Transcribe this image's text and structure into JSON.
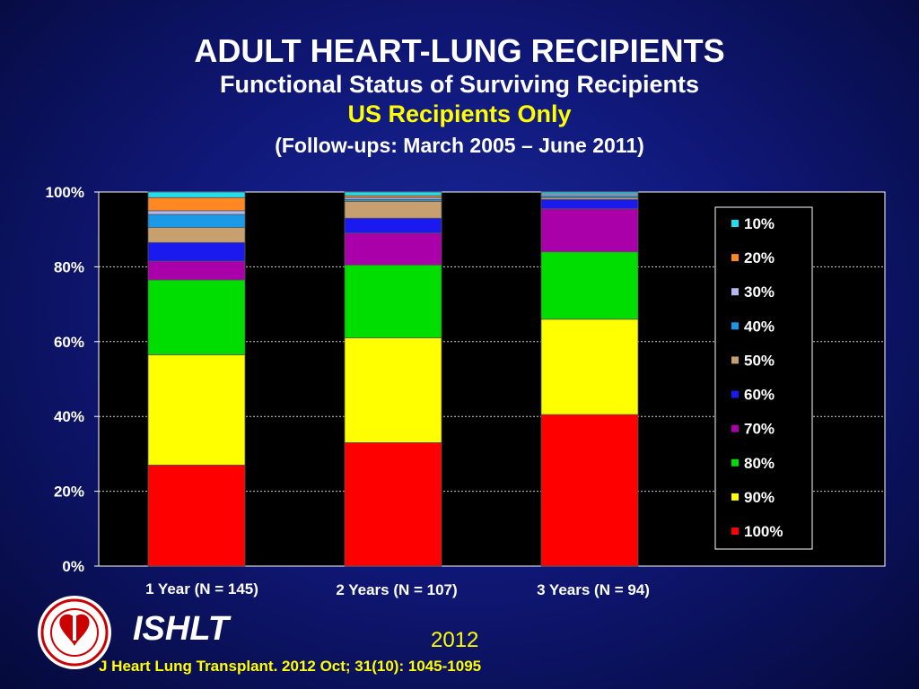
{
  "titles": {
    "main": "ADULT HEART-LUNG RECIPIENTS",
    "subtitle": "Functional Status of Surviving Recipients",
    "highlight": "US Recipients Only",
    "followups": "(Follow-ups: March 2005 – June 2011)"
  },
  "chart_data": {
    "type": "bar",
    "stacked": true,
    "categories": [
      "1 Year  (N = 145)",
      "2 Years  (N = 107)",
      "3 Years  (N = 94)"
    ],
    "ylim": [
      0,
      100
    ],
    "yticks": [
      "0%",
      "20%",
      "40%",
      "60%",
      "80%",
      "100%"
    ],
    "grid": true,
    "legend_position": "right",
    "series": [
      {
        "name": "100%",
        "color": "#ff0000",
        "values": [
          27,
          33,
          40.5
        ]
      },
      {
        "name": "90%",
        "color": "#ffff00",
        "values": [
          29.5,
          28,
          25.5
        ]
      },
      {
        "name": "80%",
        "color": "#00dd00",
        "values": [
          20,
          19.5,
          18
        ]
      },
      {
        "name": "70%",
        "color": "#aa00aa",
        "values": [
          5,
          8.5,
          11.5
        ]
      },
      {
        "name": "60%",
        "color": "#1a1aee",
        "values": [
          5,
          4,
          2.5
        ]
      },
      {
        "name": "50%",
        "color": "#c8a070",
        "values": [
          4,
          4.5,
          0.5
        ]
      },
      {
        "name": "40%",
        "color": "#1a9ae6",
        "values": [
          3.5,
          0.5,
          0.5
        ]
      },
      {
        "name": "30%",
        "color": "#b8b8f0",
        "values": [
          1,
          0.5,
          0.5
        ]
      },
      {
        "name": "20%",
        "color": "#ff8822",
        "values": [
          3.5,
          0.5,
          0
        ]
      },
      {
        "name": "10%",
        "color": "#22ddee",
        "values": [
          1.5,
          1,
          0.5
        ]
      }
    ]
  },
  "footer": {
    "brand": "ISHLT",
    "year": "2012",
    "citation": "J Heart Lung Transplant.  2012 Oct; 31(10): 1045-1095"
  }
}
